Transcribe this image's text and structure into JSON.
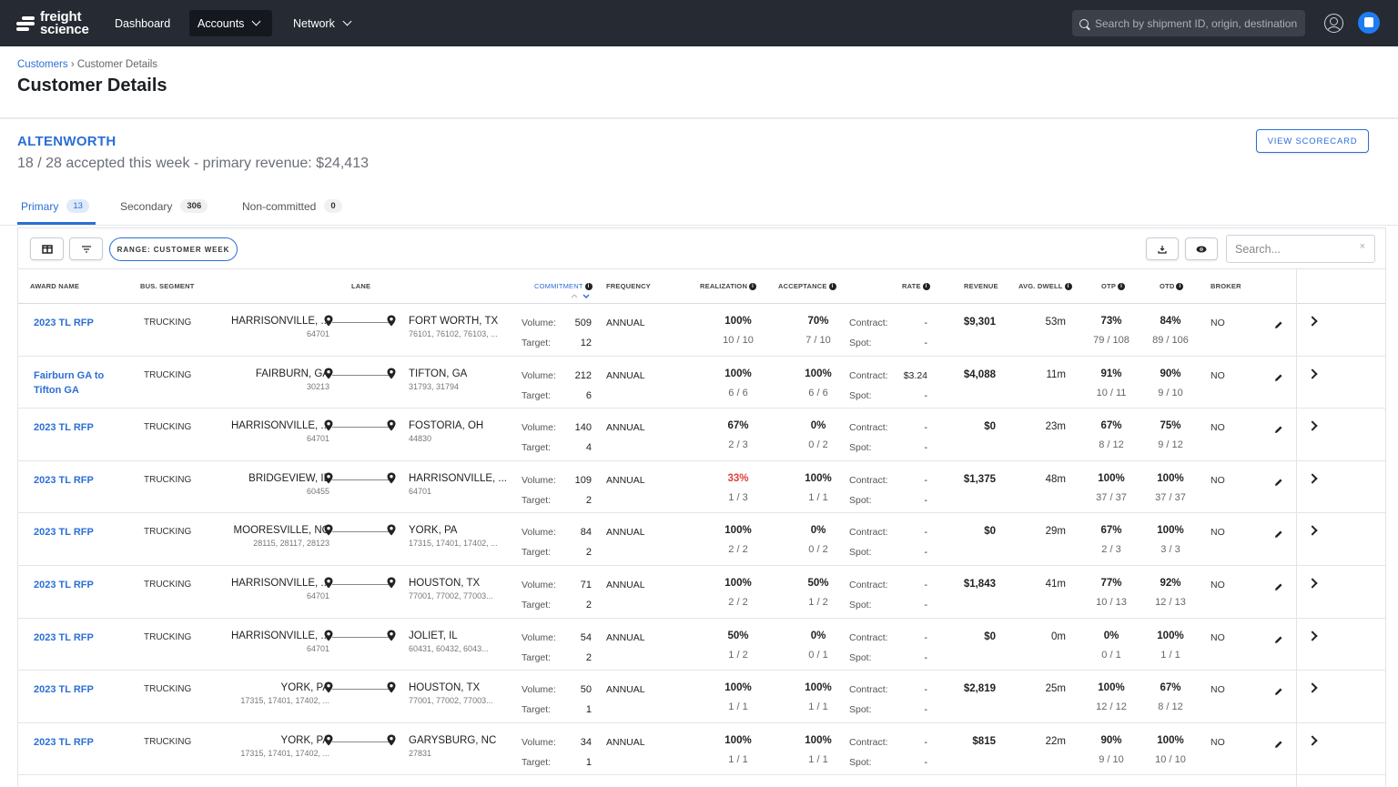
{
  "nav": {
    "logo_line1": "freight",
    "logo_line2": "science",
    "items": [
      {
        "label": "Dashboard"
      },
      {
        "label": "Accounts"
      },
      {
        "label": "Network"
      }
    ],
    "search_placeholder": "Search by shipment ID, origin, destination"
  },
  "header": {
    "breadcrumb_root": "Customers",
    "breadcrumb_sep": "›",
    "breadcrumb_current": "Customer Details",
    "title": "Customer Details"
  },
  "customer": {
    "name": "ALTENWORTH",
    "summary": "18 / 28 accepted this week - primary revenue: $24,413",
    "scorecard_button": "VIEW SCORECARD"
  },
  "tabs": [
    {
      "label": "Primary",
      "count": "13"
    },
    {
      "label": "Secondary",
      "count": "306"
    },
    {
      "label": "Non-committed",
      "count": "0"
    }
  ],
  "toolbar": {
    "range_label": "RANGE: CUSTOMER WEEK",
    "search_placeholder": "Search...",
    "clear": "×"
  },
  "columns": {
    "award": "AWARD NAME",
    "segment": "BUS. SEGMENT",
    "lane": "LANE",
    "commitment": "COMMITMENT",
    "frequency": "FREQUENCY",
    "realization": "REALIZATION",
    "acceptance": "ACCEPTANCE",
    "rate": "RATE",
    "revenue": "REVENUE",
    "dwell": "AVG. DWELL",
    "otp": "OTP",
    "otd": "OTD",
    "broker": "BROKER"
  },
  "labels": {
    "volume": "Volume:",
    "target": "Target:",
    "contract": "Contract:",
    "spot": "Spot:"
  },
  "rows": [
    {
      "award": "2023 TL RFP",
      "segment": "TRUCKING",
      "origin": "HARRISONVILLE, ...",
      "origin_zip": "64701",
      "dest": "FORT WORTH, TX",
      "dest_zip": "76101, 76102, 76103, ...",
      "volume": "509",
      "target": "12",
      "frequency": "ANNUAL",
      "realization": "100%",
      "realization_frac": "10 / 10",
      "acceptance": "70%",
      "acceptance_frac": "7 / 10",
      "contract": "-",
      "spot": "-",
      "revenue": "$9,301",
      "dwell": "53m",
      "otp": "73%",
      "otp_frac": "79 / 108",
      "otd": "84%",
      "otd_frac": "89 / 106",
      "broker": "NO"
    },
    {
      "award": "Fairburn GA to Tifton GA",
      "segment": "TRUCKING",
      "origin": "FAIRBURN, GA",
      "origin_zip": "30213",
      "dest": "TIFTON, GA",
      "dest_zip": "31793, 31794",
      "volume": "212",
      "target": "6",
      "frequency": "ANNUAL",
      "realization": "100%",
      "realization_frac": "6 / 6",
      "acceptance": "100%",
      "acceptance_frac": "6 / 6",
      "contract": "$3.24",
      "spot": "-",
      "revenue": "$4,088",
      "dwell": "11m",
      "otp": "91%",
      "otp_frac": "10 / 11",
      "otd": "90%",
      "otd_frac": "9 / 10",
      "broker": "NO"
    },
    {
      "award": "2023 TL RFP",
      "segment": "TRUCKING",
      "origin": "HARRISONVILLE, ...",
      "origin_zip": "64701",
      "dest": "FOSTORIA, OH",
      "dest_zip": "44830",
      "volume": "140",
      "target": "4",
      "frequency": "ANNUAL",
      "realization": "67%",
      "realization_frac": "2 / 3",
      "acceptance": "0%",
      "acceptance_frac": "0 / 2",
      "contract": "-",
      "spot": "-",
      "revenue": "$0",
      "dwell": "23m",
      "otp": "67%",
      "otp_frac": "8 / 12",
      "otd": "75%",
      "otd_frac": "9 / 12",
      "broker": "NO"
    },
    {
      "award": "2023 TL RFP",
      "segment": "TRUCKING",
      "origin": "BRIDGEVIEW, IL",
      "origin_zip": "60455",
      "dest": "HARRISONVILLE, ...",
      "dest_zip": "64701",
      "volume": "109",
      "target": "2",
      "frequency": "ANNUAL",
      "realization": "33%",
      "realization_frac": "1 / 3",
      "acceptance": "100%",
      "acceptance_frac": "1 / 1",
      "contract": "-",
      "spot": "-",
      "revenue": "$1,375",
      "dwell": "48m",
      "otp": "100%",
      "otp_frac": "37 / 37",
      "otd": "100%",
      "otd_frac": "37 / 37",
      "broker": "NO"
    },
    {
      "award": "2023 TL RFP",
      "segment": "TRUCKING",
      "origin": "MOORESVILLE, NC",
      "origin_zip": "28115, 28117, 28123",
      "dest": "YORK, PA",
      "dest_zip": "17315, 17401, 17402, ...",
      "volume": "84",
      "target": "2",
      "frequency": "ANNUAL",
      "realization": "100%",
      "realization_frac": "2 / 2",
      "acceptance": "0%",
      "acceptance_frac": "0 / 2",
      "contract": "-",
      "spot": "-",
      "revenue": "$0",
      "dwell": "29m",
      "otp": "67%",
      "otp_frac": "2 / 3",
      "otd": "100%",
      "otd_frac": "3 / 3",
      "broker": "NO"
    },
    {
      "award": "2023 TL RFP",
      "segment": "TRUCKING",
      "origin": "HARRISONVILLE, ...",
      "origin_zip": "64701",
      "dest": "HOUSTON, TX",
      "dest_zip": "77001, 77002, 77003...",
      "volume": "71",
      "target": "2",
      "frequency": "ANNUAL",
      "realization": "100%",
      "realization_frac": "2 / 2",
      "acceptance": "50%",
      "acceptance_frac": "1 / 2",
      "contract": "-",
      "spot": "-",
      "revenue": "$1,843",
      "dwell": "41m",
      "otp": "77%",
      "otp_frac": "10 / 13",
      "otd": "92%",
      "otd_frac": "12 / 13",
      "broker": "NO"
    },
    {
      "award": "2023 TL RFP",
      "segment": "TRUCKING",
      "origin": "HARRISONVILLE, ...",
      "origin_zip": "64701",
      "dest": "JOLIET, IL",
      "dest_zip": "60431, 60432, 6043...",
      "volume": "54",
      "target": "2",
      "frequency": "ANNUAL",
      "realization": "50%",
      "realization_frac": "1 / 2",
      "acceptance": "0%",
      "acceptance_frac": "0 / 1",
      "contract": "-",
      "spot": "-",
      "revenue": "$0",
      "dwell": "0m",
      "otp": "0%",
      "otp_frac": "0 / 1",
      "otd": "100%",
      "otd_frac": "1 / 1",
      "broker": "NO"
    },
    {
      "award": "2023 TL RFP",
      "segment": "TRUCKING",
      "origin": "YORK, PA",
      "origin_zip": "17315, 17401, 17402, ...",
      "dest": "HOUSTON, TX",
      "dest_zip": "77001, 77002, 77003...",
      "volume": "50",
      "target": "1",
      "frequency": "ANNUAL",
      "realization": "100%",
      "realization_frac": "1 / 1",
      "acceptance": "100%",
      "acceptance_frac": "1 / 1",
      "contract": "-",
      "spot": "-",
      "revenue": "$2,819",
      "dwell": "25m",
      "otp": "100%",
      "otp_frac": "12 / 12",
      "otd": "67%",
      "otd_frac": "8 / 12",
      "broker": "NO"
    },
    {
      "award": "2023 TL RFP",
      "segment": "TRUCKING",
      "origin": "YORK, PA",
      "origin_zip": "17315, 17401, 17402, ...",
      "dest": "GARYSBURG, NC",
      "dest_zip": "27831",
      "volume": "34",
      "target": "1",
      "frequency": "ANNUAL",
      "realization": "100%",
      "realization_frac": "1 / 1",
      "acceptance": "100%",
      "acceptance_frac": "1 / 1",
      "contract": "-",
      "spot": "-",
      "revenue": "$815",
      "dwell": "22m",
      "otp": "90%",
      "otp_frac": "9 / 10",
      "otd": "100%",
      "otd_frac": "10 / 10",
      "broker": "NO"
    }
  ],
  "colors": {
    "accent": "#2b6fd6",
    "nav_bg": "#252a33",
    "alert": "#e0413b"
  }
}
